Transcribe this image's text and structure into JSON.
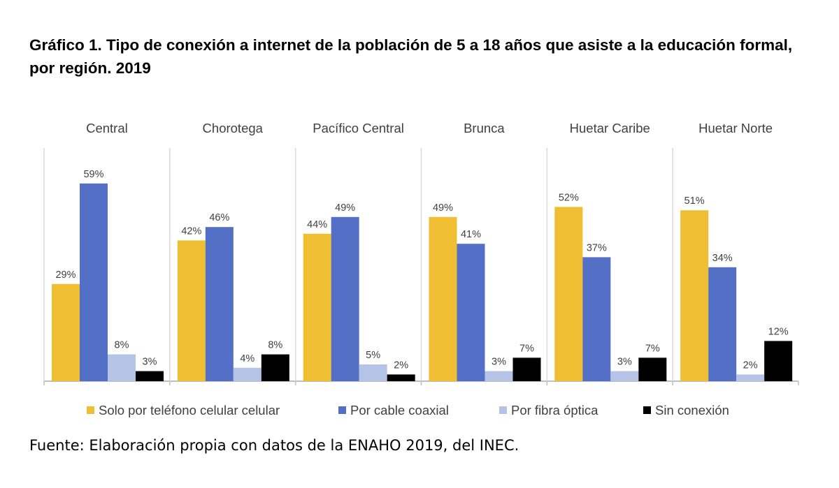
{
  "title": "Gráfico 1. Tipo de conexión a internet de la población de 5 a 18 años que asiste a la educación formal, por región. 2019",
  "source": "Fuente: Elaboración propia con datos de la ENAHO 2019, del INEC.",
  "chart_data": {
    "type": "bar",
    "title": "Gráfico 1. Tipo de conexión a internet de la población de 5 a 18 años que asiste a la educación formal, por región. 2019",
    "categories": [
      "Central",
      "Chorotega",
      "Pacífico Central",
      "Brunca",
      "Huetar Caribe",
      "Huetar Norte"
    ],
    "series": [
      {
        "name": "Solo por teléfono celular celular",
        "color": "#F0BE32",
        "values": [
          29,
          42,
          44,
          49,
          52,
          51
        ],
        "labels": [
          "29%",
          "42%",
          "44%",
          "49%",
          "52%",
          "51%"
        ]
      },
      {
        "name": "Por cable coaxial",
        "color": "#5470C6",
        "values": [
          59,
          46,
          49,
          41,
          37,
          34
        ],
        "labels": [
          "59%",
          "46%",
          "49%",
          "41%",
          "37%",
          "34%"
        ]
      },
      {
        "name": "Por fibra óptica",
        "color": "#B4C3E6",
        "values": [
          8,
          4,
          5,
          3,
          3,
          2
        ],
        "labels": [
          "8%",
          "4%",
          "5%",
          "3%",
          "3%",
          "2%"
        ]
      },
      {
        "name": "Sin conexión",
        "color": "#000000",
        "values": [
          3,
          8,
          2,
          7,
          7,
          12
        ],
        "labels": [
          "3%",
          "8%",
          "2%",
          "7%",
          "7%",
          "12%"
        ]
      }
    ],
    "ylim": [
      0,
      70
    ],
    "legend_position": "bottom",
    "grid": false
  }
}
